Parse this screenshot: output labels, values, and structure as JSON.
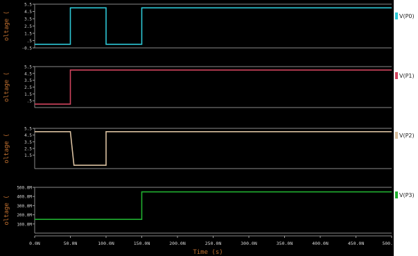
{
  "chart_data": {
    "type": "line",
    "xlabel": "Time (s)",
    "x_unit": "ns",
    "xlim": [
      0,
      500
    ],
    "x_ticks": [
      0,
      50,
      100,
      150,
      200,
      250,
      300,
      350,
      400,
      450,
      500
    ],
    "x_tick_labels": [
      "0.0N",
      "50.0N",
      "100.0N",
      "150.0N",
      "200.0N",
      "250.0N",
      "300.0N",
      "350.0N",
      "400.0N",
      "450.0N",
      "500."
    ],
    "panels": [
      {
        "ylabel": "oltage (",
        "ylim": [
          -0.5,
          5.5
        ],
        "y_ticks": [
          5.5,
          4.5,
          3.5,
          2.5,
          1.5,
          0.5,
          -0.5
        ],
        "y_tick_labels": [
          "5.5",
          "4.5",
          "3.5",
          "2.5",
          "1.5",
          ".5",
          "-0.5"
        ],
        "series": [
          {
            "name": "V(P0)",
            "color": "#2ec8d6",
            "x": [
              0,
              50,
              50,
              100,
              100,
              150,
              150,
              500
            ],
            "y": [
              0,
              0,
              5,
              5,
              0,
              0,
              5,
              5
            ]
          }
        ]
      },
      {
        "ylabel": "oltage (",
        "ylim": [
          -0.5,
          5.5
        ],
        "y_ticks": [
          5.5,
          4.5,
          3.5,
          2.5,
          1.5,
          0.5
        ],
        "y_tick_labels": [
          "5.5",
          "4.5",
          "3.5",
          "2.5",
          "1.5",
          ".5"
        ],
        "series": [
          {
            "name": "V(P1)",
            "color": "#d2445e",
            "x": [
              0,
              50,
              50,
              500
            ],
            "y": [
              0,
              0,
              5,
              5
            ]
          }
        ]
      },
      {
        "ylabel": "oltage (",
        "ylim": [
          -0.5,
          5.5
        ],
        "y_ticks": [
          5.5,
          4.5,
          3.5,
          2.5,
          1.5
        ],
        "y_tick_labels": [
          "5.5",
          "4.5",
          "3.5",
          "2.5",
          "1.5"
        ],
        "series": [
          {
            "name": "V(P2)",
            "color": "#d9c0a0",
            "x": [
              0,
              50,
              55,
              100,
              100,
              500
            ],
            "y": [
              5,
              5,
              0,
              0,
              5,
              5
            ]
          }
        ]
      },
      {
        "ylabel": "oltage (",
        "y_unit": "mV",
        "ylim": [
          0,
          500
        ],
        "y_ticks": [
          500,
          400,
          300,
          200,
          100
        ],
        "y_tick_labels": [
          "500.0M",
          "400.0M",
          "300.0M",
          "200.0M",
          "100.0M"
        ],
        "series": [
          {
            "name": "V(P3)",
            "color": "#20b030",
            "x": [
              0,
              150,
              150,
              500
            ],
            "y": [
              150,
              150,
              450,
              450
            ]
          }
        ]
      }
    ]
  }
}
